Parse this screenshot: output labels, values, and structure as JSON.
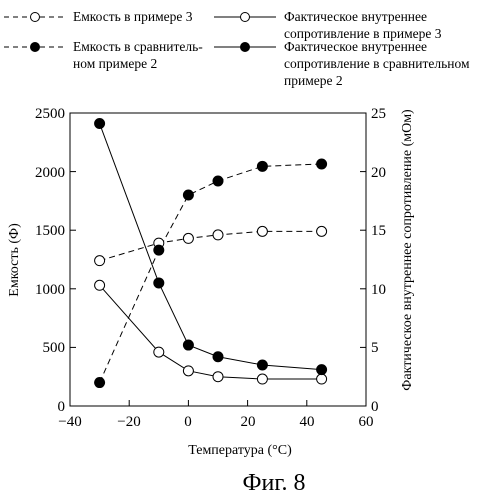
{
  "chart_data": {
    "type": "line",
    "xlabel": "Температура (°C)",
    "ylabel_left": "Емкость (Ф)",
    "ylabel_right": "Фактическое внутреннее сопротивление (мОм)",
    "xlim": [
      -40,
      60
    ],
    "ylim_left": [
      0,
      2500
    ],
    "ylim_right": [
      0,
      25
    ],
    "xticks": [
      "−40",
      "−20",
      "0",
      "20",
      "40",
      "60"
    ],
    "yticks_left": [
      "0",
      "500",
      "1000",
      "1500",
      "2000",
      "2500"
    ],
    "yticks_right": [
      "0",
      "5",
      "10",
      "15",
      "20",
      "25"
    ],
    "grid": false,
    "legend_position": "top",
    "x": [
      -30,
      -10,
      0,
      10,
      25,
      45
    ],
    "series": [
      {
        "name": "Емкость в примере 3",
        "axis": "left",
        "line": "dashed",
        "marker": "open-circle",
        "values": [
          1240,
          1390,
          1430,
          1460,
          1490,
          1490
        ]
      },
      {
        "name": "Емкость в сравнитель-ном примере 2",
        "name_lines": [
          "Емкость в сравнитель-",
          "ном примере 2"
        ],
        "axis": "left",
        "line": "dashed",
        "marker": "filled-circle",
        "values": [
          200,
          1330,
          1800,
          1920,
          2045,
          2065
        ]
      },
      {
        "name": "Фактическое внутреннее сопротивление в примере 3",
        "name_lines": [
          "Фактическое внутреннее",
          "сопротивление в примере 3"
        ],
        "axis": "right",
        "line": "solid",
        "marker": "open-circle",
        "values": [
          10.3,
          4.6,
          3.0,
          2.5,
          2.3,
          2.3
        ]
      },
      {
        "name": "Фактическое внутреннее сопротивление в сравнительном примере 2",
        "name_lines": [
          "Фактическое внутреннее",
          "сопротивление в сравнительном",
          "примере 2"
        ],
        "axis": "right",
        "line": "solid",
        "marker": "filled-circle",
        "values": [
          24.1,
          10.5,
          5.2,
          4.2,
          3.5,
          3.1
        ]
      }
    ],
    "caption": "Фиг. 8"
  }
}
